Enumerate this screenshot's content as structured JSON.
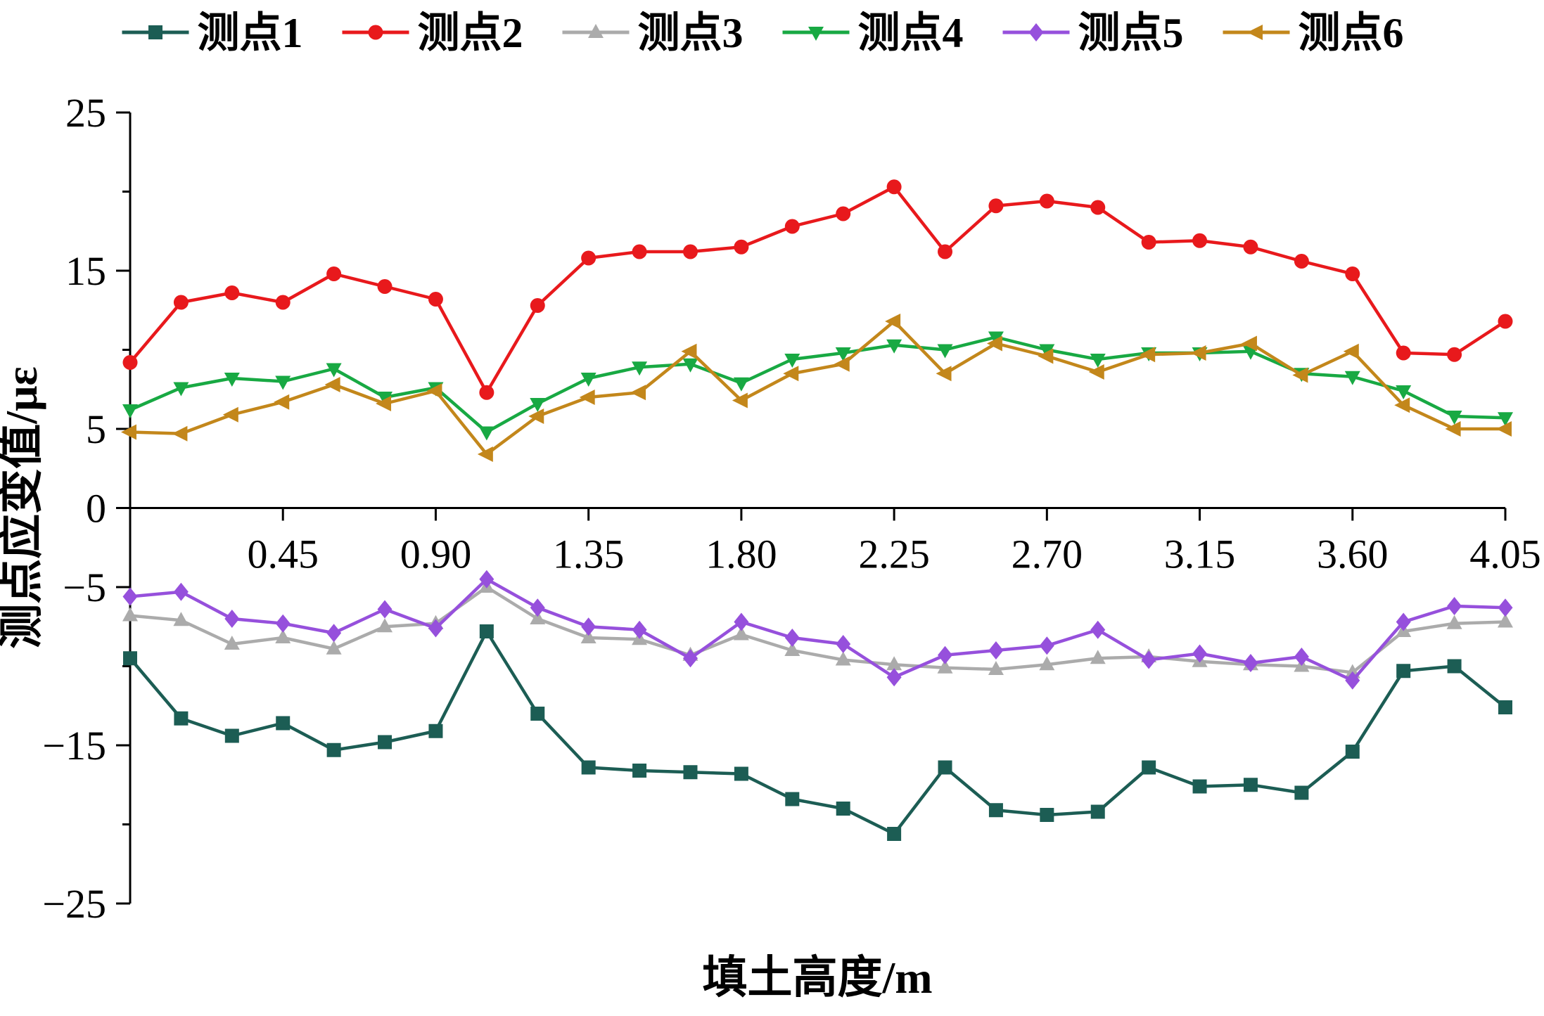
{
  "chart_data": {
    "type": "line",
    "title": "",
    "xlabel": "填土高度/m",
    "ylabel": "测点应变值/με",
    "xlim": [
      0,
      4.05
    ],
    "ylim": [
      -25,
      25
    ],
    "x_ticks": [
      0.45,
      0.9,
      1.35,
      1.8,
      2.25,
      2.7,
      3.15,
      3.6,
      4.05
    ],
    "y_ticks": [
      25,
      15,
      5,
      0,
      -5,
      -15,
      -25
    ],
    "y_minor_ticks": [
      20,
      10,
      -10,
      -20
    ],
    "grid": false,
    "legend_position": "top",
    "axis_color": "#000000",
    "x": [
      0,
      0.15,
      0.3,
      0.45,
      0.6,
      0.75,
      0.9,
      1.05,
      1.2,
      1.35,
      1.5,
      1.65,
      1.8,
      1.95,
      2.1,
      2.25,
      2.4,
      2.55,
      2.7,
      2.85,
      3.0,
      3.15,
      3.3,
      3.45,
      3.6,
      3.75,
      3.9,
      4.05
    ],
    "series": [
      {
        "name": "测点1",
        "color": "#1c5d54",
        "marker": "square",
        "values": [
          -9.5,
          -13.3,
          -14.4,
          -13.6,
          -15.3,
          -14.8,
          -14.1,
          -7.8,
          -13.0,
          -16.4,
          -16.6,
          -16.7,
          -16.8,
          -18.4,
          -19.0,
          -20.6,
          -16.4,
          -19.1,
          -19.4,
          -19.2,
          -16.4,
          -17.6,
          -17.5,
          -18.0,
          -15.4,
          -10.3,
          -10.0,
          -12.6
        ]
      },
      {
        "name": "测点2",
        "color": "#e8191c",
        "marker": "circle",
        "values": [
          9.2,
          13.0,
          13.6,
          13.0,
          14.8,
          14.0,
          13.2,
          7.3,
          12.8,
          15.8,
          16.2,
          16.2,
          16.5,
          17.8,
          18.6,
          20.3,
          16.2,
          19.1,
          19.4,
          19.0,
          16.8,
          16.9,
          16.5,
          15.6,
          14.8,
          9.8,
          9.7,
          11.8
        ]
      },
      {
        "name": "测点3",
        "color": "#ababab",
        "marker": "triangle-up",
        "values": [
          -6.8,
          -7.1,
          -8.6,
          -8.2,
          -8.9,
          -7.5,
          -7.3,
          -5.0,
          -7.0,
          -8.2,
          -8.3,
          -9.3,
          -8.0,
          -9.0,
          -9.6,
          -9.9,
          -10.1,
          -10.2,
          -9.9,
          -9.5,
          -9.4,
          -9.7,
          -9.9,
          -10.0,
          -10.4,
          -7.8,
          -7.3,
          -7.2
        ]
      },
      {
        "name": "测点4",
        "color": "#18a943",
        "marker": "triangle-down",
        "values": [
          6.2,
          7.6,
          8.2,
          8.0,
          8.8,
          7.0,
          7.6,
          4.8,
          6.6,
          8.2,
          8.9,
          9.1,
          7.9,
          9.4,
          9.8,
          10.3,
          10.0,
          10.8,
          10.0,
          9.4,
          9.8,
          9.8,
          9.9,
          8.5,
          8.3,
          7.4,
          5.8,
          5.7
        ]
      },
      {
        "name": "测点5",
        "color": "#9650dc",
        "marker": "diamond",
        "values": [
          -5.6,
          -5.3,
          -7.0,
          -7.3,
          -7.9,
          -6.4,
          -7.6,
          -4.5,
          -6.3,
          -7.5,
          -7.7,
          -9.5,
          -7.2,
          -8.2,
          -8.6,
          -10.7,
          -9.3,
          -9.0,
          -8.7,
          -7.7,
          -9.6,
          -9.2,
          -9.8,
          -9.4,
          -10.9,
          -7.2,
          -6.2,
          -6.3
        ]
      },
      {
        "name": "测点6",
        "color": "#c3871b",
        "marker": "triangle-left",
        "values": [
          4.8,
          4.7,
          5.9,
          6.7,
          7.8,
          6.6,
          7.4,
          3.4,
          5.8,
          7.0,
          7.3,
          9.9,
          6.8,
          8.5,
          9.1,
          11.8,
          8.5,
          10.4,
          9.6,
          8.6,
          9.7,
          9.8,
          10.4,
          8.4,
          9.9,
          6.5,
          5.0,
          5.0
        ]
      }
    ]
  }
}
